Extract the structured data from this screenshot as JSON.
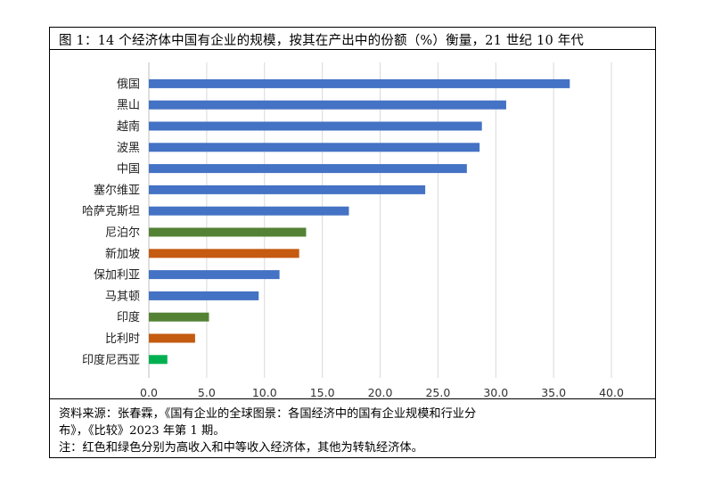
{
  "title": "图 1：14 个经济体中国有企业的规模，按其在产出中的份额（%）衡量，21 世纪 10 年代",
  "notes": {
    "line1": "资料来源：张春霖，《国有企业的全球图景：各国经济中的国有企业规模和行业分",
    "line2": "布》，《比较》2023 年第 1 期。",
    "line3": "注：红色和绿色分别为高收入和中等收入经济体，其他为转轨经济体。"
  },
  "colors": {
    "transition": "#4472C4",
    "middle_income": "#548235",
    "high_income": "#C55A11",
    "indonesia": "#00B050",
    "grid": "#D9D9D9",
    "axis": "#BFBFBF"
  },
  "chart_data": {
    "type": "bar",
    "orientation": "horizontal",
    "categories": [
      "俄国",
      "黑山",
      "越南",
      "波黑",
      "中国",
      "塞尔维亚",
      "哈萨克斯坦",
      "尼泊尔",
      "新加坡",
      "保加利亚",
      "马其顿",
      "印度",
      "比利时",
      "印度尼西亚"
    ],
    "values": [
      36.4,
      30.9,
      28.8,
      28.6,
      27.5,
      23.9,
      17.3,
      13.6,
      13.0,
      11.3,
      9.5,
      5.2,
      4.0,
      1.6
    ],
    "bar_colors": [
      "transition",
      "transition",
      "transition",
      "transition",
      "transition",
      "transition",
      "transition",
      "middle_income",
      "high_income",
      "transition",
      "transition",
      "middle_income",
      "high_income",
      "indonesia"
    ],
    "xlim": [
      0,
      40
    ],
    "xticks": [
      "0.0",
      "5.0",
      "10.0",
      "15.0",
      "20.0",
      "25.0",
      "30.0",
      "35.0",
      "40.0"
    ],
    "grid": true,
    "legend": "none"
  }
}
